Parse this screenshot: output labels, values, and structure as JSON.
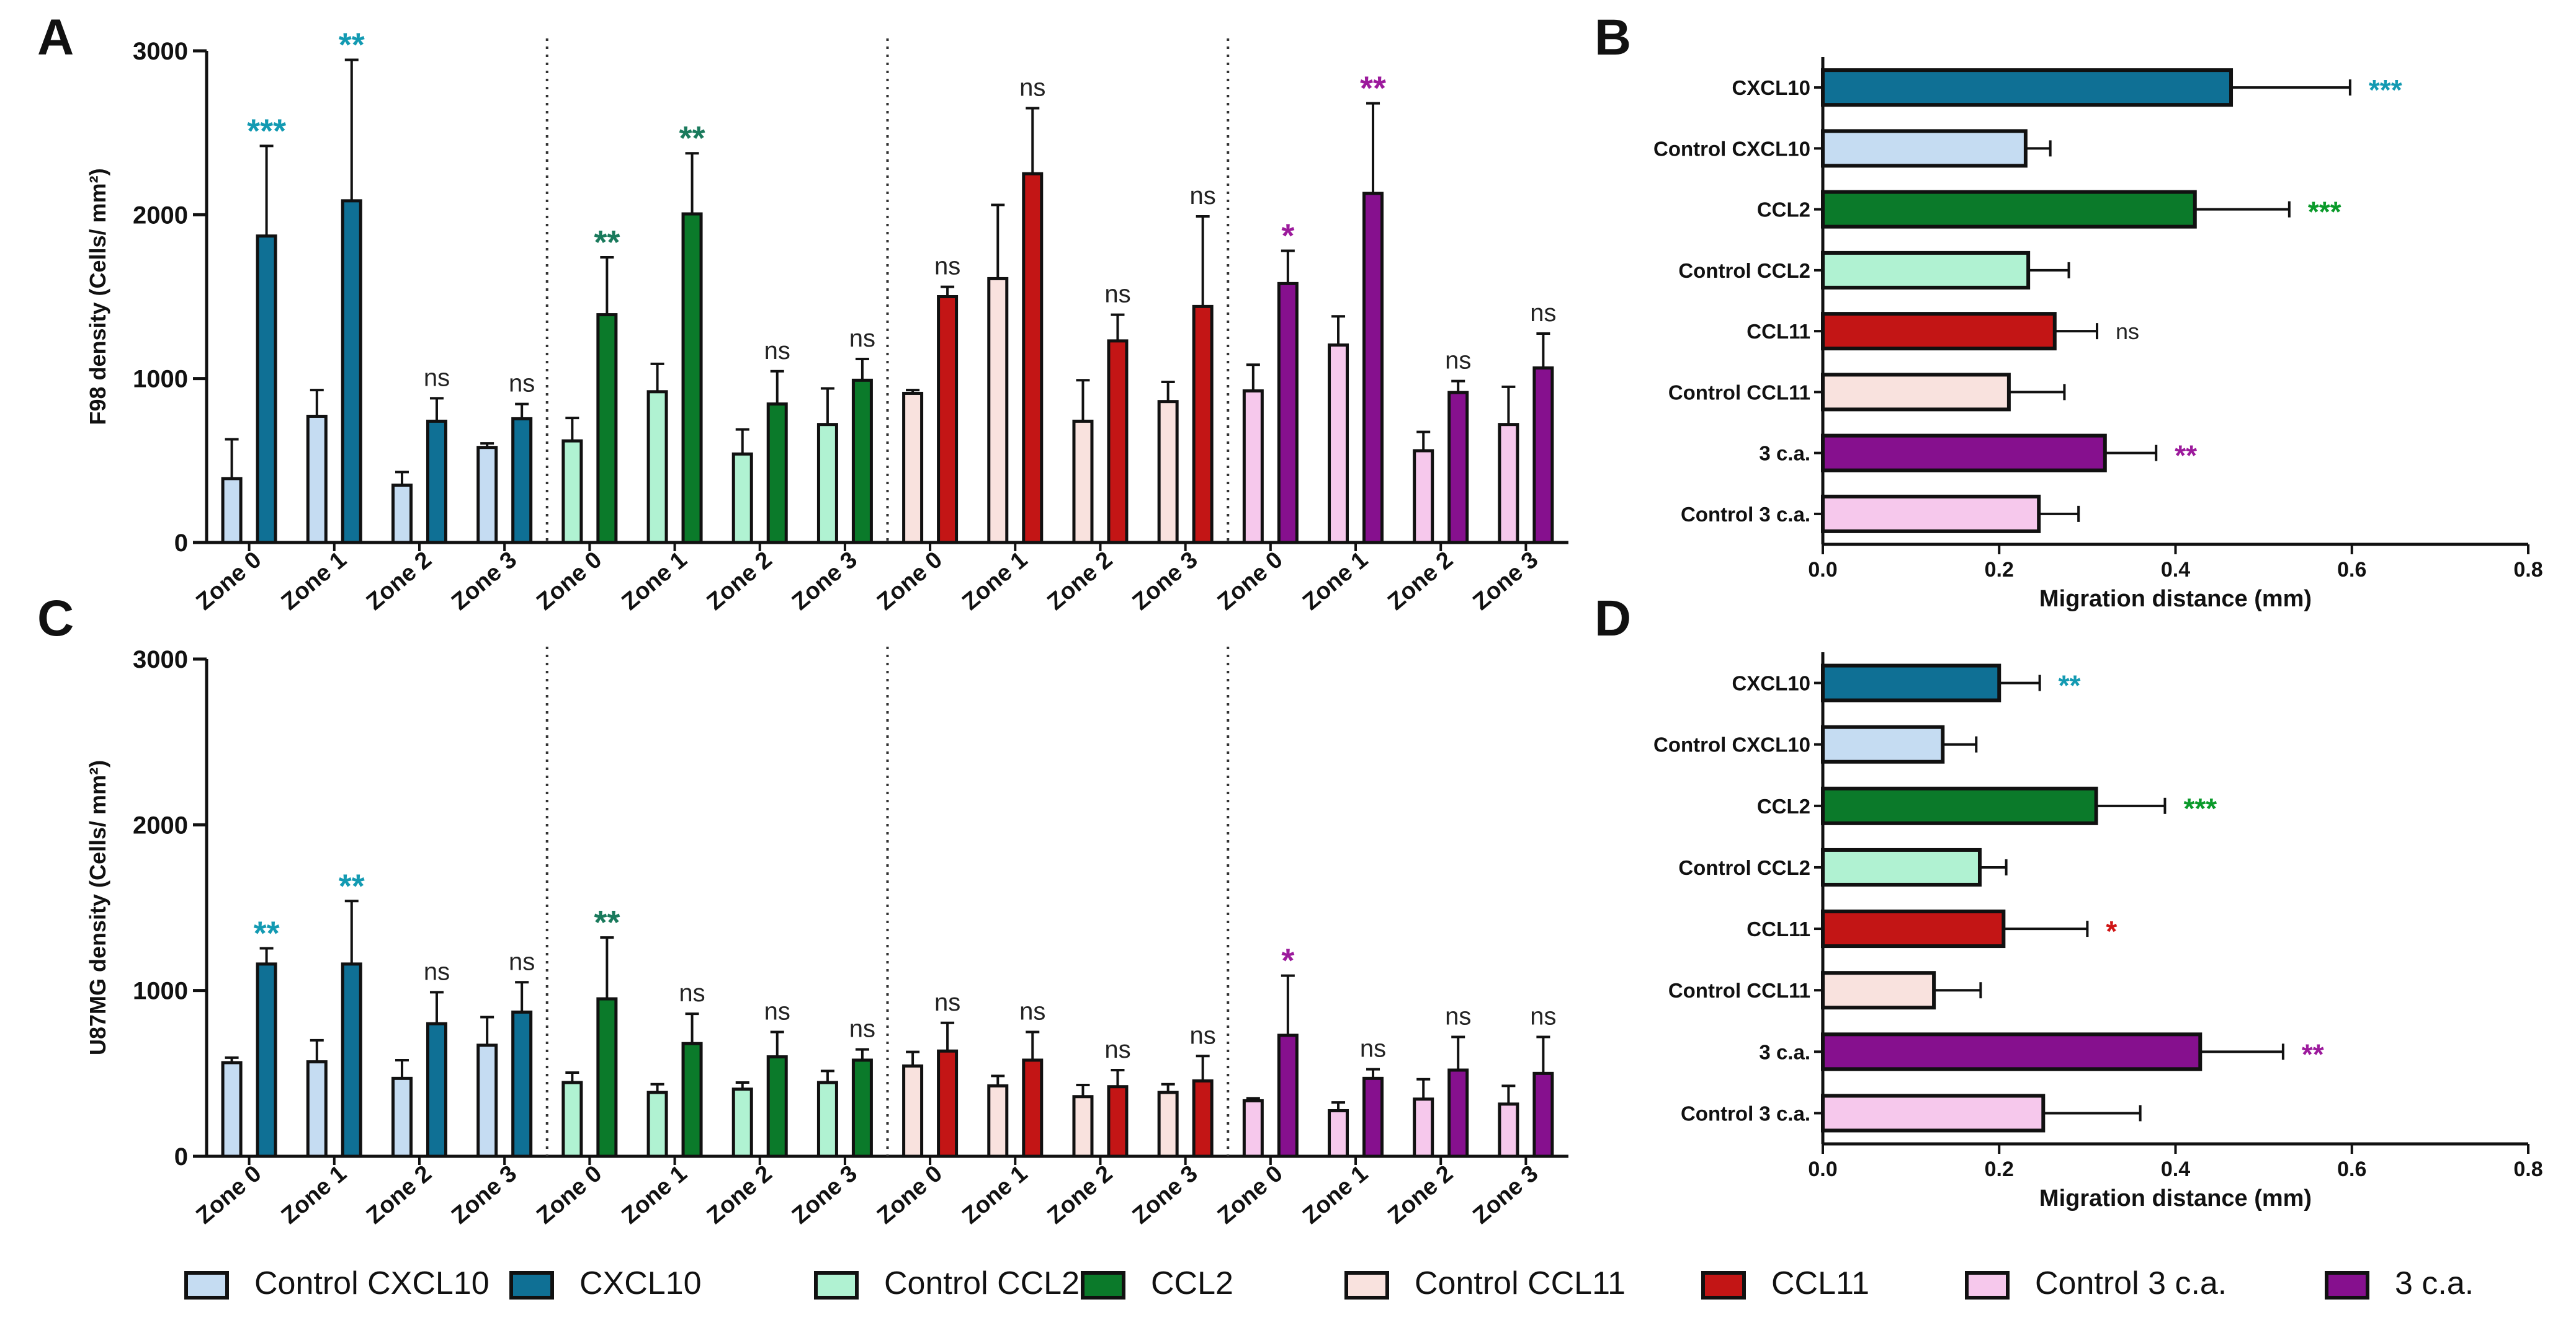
{
  "colors": {
    "cxcl10_ctrl": "#c5dcf2",
    "cxcl10": "#0f7095",
    "ccl2_ctrl": "#b0f2d2",
    "ccl2": "#0b7a2a",
    "ccl11_ctrl": "#f9e2de",
    "ccl11": "#c31515",
    "ca_ctrl": "#f6c8ec",
    "ca": "#86108e",
    "sig_cxcl10": "#139ab2",
    "sig_ccl2_a": "#1a7a5c",
    "sig_ccl2_b": "#0a9a2a",
    "sig_ccl11": "#d01515",
    "sig_ca": "#9c1a9c"
  },
  "legend": {
    "items": [
      {
        "label": "Control CXCL10",
        "color": "#c5dcf2"
      },
      {
        "label": "CXCL10",
        "color": "#0f7095"
      },
      {
        "label": "Control CCL2",
        "color": "#b0f2d2"
      },
      {
        "label": "CCL2",
        "color": "#0b7a2a"
      },
      {
        "label": "Control CCL11",
        "color": "#f9e2de"
      },
      {
        "label": "CCL11",
        "color": "#c31515"
      },
      {
        "label": "Control 3 c.a.",
        "color": "#f6c8ec"
      },
      {
        "label": "3 c.a.",
        "color": "#86108e"
      }
    ]
  },
  "chart_data": [
    {
      "panel": "A",
      "type": "bar",
      "ylabel": "F98 density (Cells/ mm²)",
      "ylim": [
        0,
        3000
      ],
      "yticks": [
        0,
        1000,
        2000,
        3000
      ],
      "groups": [
        {
          "color_ctrl": "#c5dcf2",
          "color_trt": "#0f7095",
          "sig_color": "#139ab2",
          "zones": [
            {
              "label": "Zone 0",
              "control": 390,
              "control_err": 240,
              "treated": 1870,
              "treated_err": 550,
              "sig": "***"
            },
            {
              "label": "Zone 1",
              "control": 770,
              "control_err": 160,
              "treated": 2085,
              "treated_err": 860,
              "sig": "**"
            },
            {
              "label": "Zone 2",
              "control": 350,
              "control_err": 80,
              "treated": 740,
              "treated_err": 140,
              "sig": "ns"
            },
            {
              "label": "Zone 3",
              "control": 580,
              "control_err": 25,
              "treated": 755,
              "treated_err": 90,
              "sig": "ns"
            }
          ]
        },
        {
          "color_ctrl": "#b0f2d2",
          "color_trt": "#0b7a2a",
          "sig_color": "#1a7a5c",
          "zones": [
            {
              "label": "Zone 0",
              "control": 620,
              "control_err": 140,
              "treated": 1390,
              "treated_err": 350,
              "sig": "**"
            },
            {
              "label": "Zone 1",
              "control": 920,
              "control_err": 170,
              "treated": 2005,
              "treated_err": 370,
              "sig": "**"
            },
            {
              "label": "Zone 2",
              "control": 540,
              "control_err": 150,
              "treated": 845,
              "treated_err": 200,
              "sig": "ns"
            },
            {
              "label": "Zone 3",
              "control": 720,
              "control_err": 220,
              "treated": 990,
              "treated_err": 130,
              "sig": "ns"
            }
          ]
        },
        {
          "color_ctrl": "#f9e2de",
          "color_trt": "#c31515",
          "sig_color": "#222222",
          "zones": [
            {
              "label": "Zone 0",
              "control": 910,
              "control_err": 20,
              "treated": 1500,
              "treated_err": 60,
              "sig": "ns"
            },
            {
              "label": "Zone 1",
              "control": 1610,
              "control_err": 450,
              "treated": 2250,
              "treated_err": 400,
              "sig": "ns"
            },
            {
              "label": "Zone 2",
              "control": 740,
              "control_err": 250,
              "treated": 1230,
              "treated_err": 160,
              "sig": "ns"
            },
            {
              "label": "Zone 3",
              "control": 860,
              "control_err": 120,
              "treated": 1440,
              "treated_err": 550,
              "sig": "ns"
            }
          ]
        },
        {
          "color_ctrl": "#f6c8ec",
          "color_trt": "#86108e",
          "sig_color": "#9c1a9c",
          "zones": [
            {
              "label": "Zone 0",
              "control": 925,
              "control_err": 160,
              "treated": 1580,
              "treated_err": 200,
              "sig": "*"
            },
            {
              "label": "Zone 1",
              "control": 1205,
              "control_err": 175,
              "treated": 2130,
              "treated_err": 550,
              "sig": "**"
            },
            {
              "label": "Zone 2",
              "control": 560,
              "control_err": 115,
              "treated": 915,
              "treated_err": 70,
              "sig": "ns"
            },
            {
              "label": "Zone 3",
              "control": 720,
              "control_err": 230,
              "treated": 1065,
              "treated_err": 210,
              "sig": "ns"
            }
          ]
        }
      ]
    },
    {
      "panel": "C",
      "type": "bar",
      "ylabel": "U87MG density (Cells/ mm²)",
      "ylim": [
        0,
        3000
      ],
      "yticks": [
        0,
        1000,
        2000,
        3000
      ],
      "groups": [
        {
          "color_ctrl": "#c5dcf2",
          "color_trt": "#0f7095",
          "sig_color": "#139ab2",
          "zones": [
            {
              "label": "Zone 0",
              "control": 565,
              "control_err": 30,
              "treated": 1160,
              "treated_err": 95,
              "sig": "**"
            },
            {
              "label": "Zone 1",
              "control": 570,
              "control_err": 130,
              "treated": 1160,
              "treated_err": 380,
              "sig": "**"
            },
            {
              "label": "Zone 2",
              "control": 470,
              "control_err": 110,
              "treated": 800,
              "treated_err": 190,
              "sig": "ns"
            },
            {
              "label": "Zone 3",
              "control": 670,
              "control_err": 170,
              "treated": 870,
              "treated_err": 180,
              "sig": "ns"
            }
          ]
        },
        {
          "color_ctrl": "#b0f2d2",
          "color_trt": "#0b7a2a",
          "sig_color": "#1a7a5c",
          "zones": [
            {
              "label": "Zone 0",
              "control": 445,
              "control_err": 60,
              "treated": 950,
              "treated_err": 370,
              "sig": "**"
            },
            {
              "label": "Zone 1",
              "control": 385,
              "control_err": 50,
              "treated": 680,
              "treated_err": 180,
              "sig": "ns"
            },
            {
              "label": "Zone 2",
              "control": 405,
              "control_err": 40,
              "treated": 600,
              "treated_err": 150,
              "sig": "ns"
            },
            {
              "label": "Zone 3",
              "control": 445,
              "control_err": 70,
              "treated": 580,
              "treated_err": 65,
              "sig": "ns"
            }
          ]
        },
        {
          "color_ctrl": "#f9e2de",
          "color_trt": "#c31515",
          "sig_color": "#222222",
          "zones": [
            {
              "label": "Zone 0",
              "control": 545,
              "control_err": 85,
              "treated": 635,
              "treated_err": 170,
              "sig": "ns"
            },
            {
              "label": "Zone 1",
              "control": 425,
              "control_err": 60,
              "treated": 580,
              "treated_err": 170,
              "sig": "ns"
            },
            {
              "label": "Zone 2",
              "control": 360,
              "control_err": 70,
              "treated": 420,
              "treated_err": 100,
              "sig": "ns"
            },
            {
              "label": "Zone 3",
              "control": 385,
              "control_err": 50,
              "treated": 455,
              "treated_err": 150,
              "sig": "ns"
            }
          ]
        },
        {
          "color_ctrl": "#f6c8ec",
          "color_trt": "#86108e",
          "sig_color": "#9c1a9c",
          "zones": [
            {
              "label": "Zone 0",
              "control": 335,
              "control_err": 15,
              "treated": 730,
              "treated_err": 360,
              "sig": "*"
            },
            {
              "label": "Zone 1",
              "control": 275,
              "control_err": 50,
              "treated": 470,
              "treated_err": 55,
              "sig": "ns"
            },
            {
              "label": "Zone 2",
              "control": 345,
              "control_err": 120,
              "treated": 520,
              "treated_err": 200,
              "sig": "ns"
            },
            {
              "label": "Zone 3",
              "control": 315,
              "control_err": 110,
              "treated": 500,
              "treated_err": 220,
              "sig": "ns"
            }
          ]
        }
      ]
    },
    {
      "panel": "B",
      "type": "bar",
      "orientation": "horizontal",
      "xlabel": "Migration distance (mm)",
      "xlim": [
        0,
        0.8
      ],
      "xticks": [
        "0.0",
        "0.2",
        "0.4",
        "0.6",
        "0.8"
      ],
      "bars": [
        {
          "label": "CXCL10",
          "value": 0.463,
          "err": 0.135,
          "color": "#0f7095",
          "sig": "***",
          "sig_color": "#139ab2"
        },
        {
          "label": "Control CXCL10",
          "value": 0.23,
          "err": 0.028,
          "color": "#c5dcf2",
          "sig": "",
          "sig_color": "#222222"
        },
        {
          "label": "CCL2",
          "value": 0.422,
          "err": 0.107,
          "color": "#0b7a2a",
          "sig": "***",
          "sig_color": "#0a9a2a"
        },
        {
          "label": "Control CCL2",
          "value": 0.233,
          "err": 0.046,
          "color": "#b0f2d2",
          "sig": "",
          "sig_color": "#222222"
        },
        {
          "label": "CCL11",
          "value": 0.263,
          "err": 0.048,
          "color": "#c31515",
          "sig": "ns",
          "sig_color": "#222222"
        },
        {
          "label": "Control CCL11",
          "value": 0.211,
          "err": 0.063,
          "color": "#f9e2de",
          "sig": "",
          "sig_color": "#222222"
        },
        {
          "label": "3 c.a.",
          "value": 0.32,
          "err": 0.058,
          "color": "#86108e",
          "sig": "**",
          "sig_color": "#9c1a9c"
        },
        {
          "label": "Control 3 c.a.",
          "value": 0.245,
          "err": 0.045,
          "color": "#f6c8ec",
          "sig": "",
          "sig_color": "#222222"
        }
      ]
    },
    {
      "panel": "D",
      "type": "bar",
      "orientation": "horizontal",
      "xlabel": "Migration distance (mm)",
      "xlim": [
        0,
        0.8
      ],
      "xticks": [
        "0.0",
        "0.2",
        "0.4",
        "0.6",
        "0.8"
      ],
      "bars": [
        {
          "label": "CXCL10",
          "value": 0.2,
          "err": 0.046,
          "color": "#0f7095",
          "sig": "**",
          "sig_color": "#139ab2"
        },
        {
          "label": "Control CXCL10",
          "value": 0.136,
          "err": 0.038,
          "color": "#c5dcf2",
          "sig": "",
          "sig_color": "#222222"
        },
        {
          "label": "CCL2",
          "value": 0.31,
          "err": 0.078,
          "color": "#0b7a2a",
          "sig": "***",
          "sig_color": "#0a9a2a"
        },
        {
          "label": "Control CCL2",
          "value": 0.178,
          "err": 0.03,
          "color": "#b0f2d2",
          "sig": "",
          "sig_color": "#222222"
        },
        {
          "label": "CCL11",
          "value": 0.205,
          "err": 0.095,
          "color": "#c31515",
          "sig": "*",
          "sig_color": "#d01515"
        },
        {
          "label": "Control CCL11",
          "value": 0.126,
          "err": 0.053,
          "color": "#f9e2de",
          "sig": "",
          "sig_color": "#222222"
        },
        {
          "label": "3 c.a.",
          "value": 0.428,
          "err": 0.094,
          "color": "#86108e",
          "sig": "**",
          "sig_color": "#9c1a9c"
        },
        {
          "label": "Control 3 c.a.",
          "value": 0.25,
          "err": 0.11,
          "color": "#f6c8ec",
          "sig": "",
          "sig_color": "#222222"
        }
      ]
    }
  ],
  "panel_letters": [
    "A",
    "B",
    "C",
    "D"
  ]
}
